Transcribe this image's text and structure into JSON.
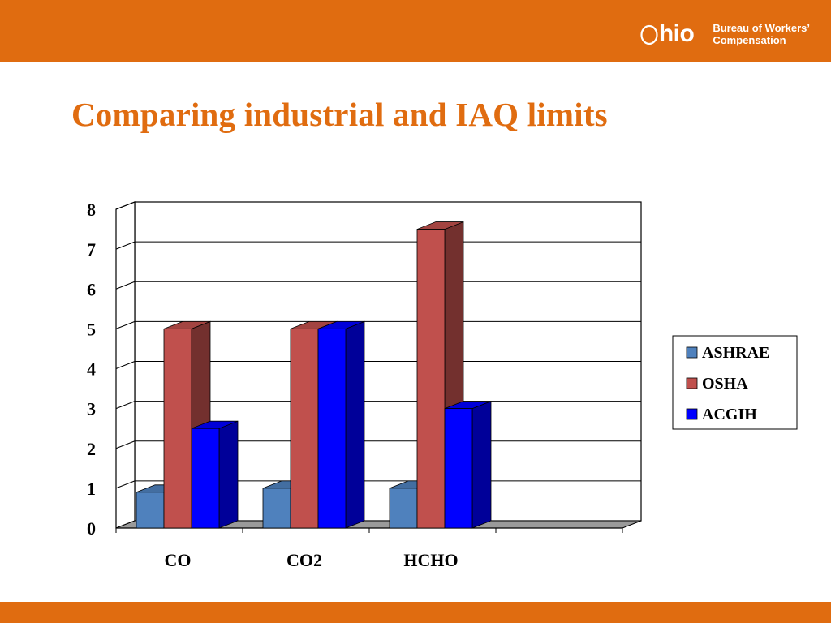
{
  "header": {
    "logo_text": "hio",
    "org_line1": "Bureau of Workers’",
    "org_line2": "Compensation"
  },
  "slide": {
    "title": "Comparing industrial and IAQ limits"
  },
  "colors": {
    "brand_orange": "#e06c10",
    "series_ashrae": "#4f81bd",
    "series_osha": "#c0504d",
    "series_acgih": "#0000ff"
  },
  "chart_data": {
    "type": "bar",
    "categories": [
      "CO",
      "CO2",
      "HCHO",
      ""
    ],
    "series": [
      {
        "name": "ASHRAE",
        "values": [
          0.9,
          1,
          1,
          null
        ]
      },
      {
        "name": "OSHA",
        "values": [
          5,
          5,
          7.5,
          null
        ]
      },
      {
        "name": "ACGIH",
        "values": [
          2.5,
          5,
          3,
          null
        ]
      }
    ],
    "ylim": [
      0,
      8
    ],
    "yticks": [
      0,
      1,
      2,
      3,
      4,
      5,
      6,
      7,
      8
    ],
    "grid": true,
    "legend_position": "right",
    "three_d": true
  }
}
